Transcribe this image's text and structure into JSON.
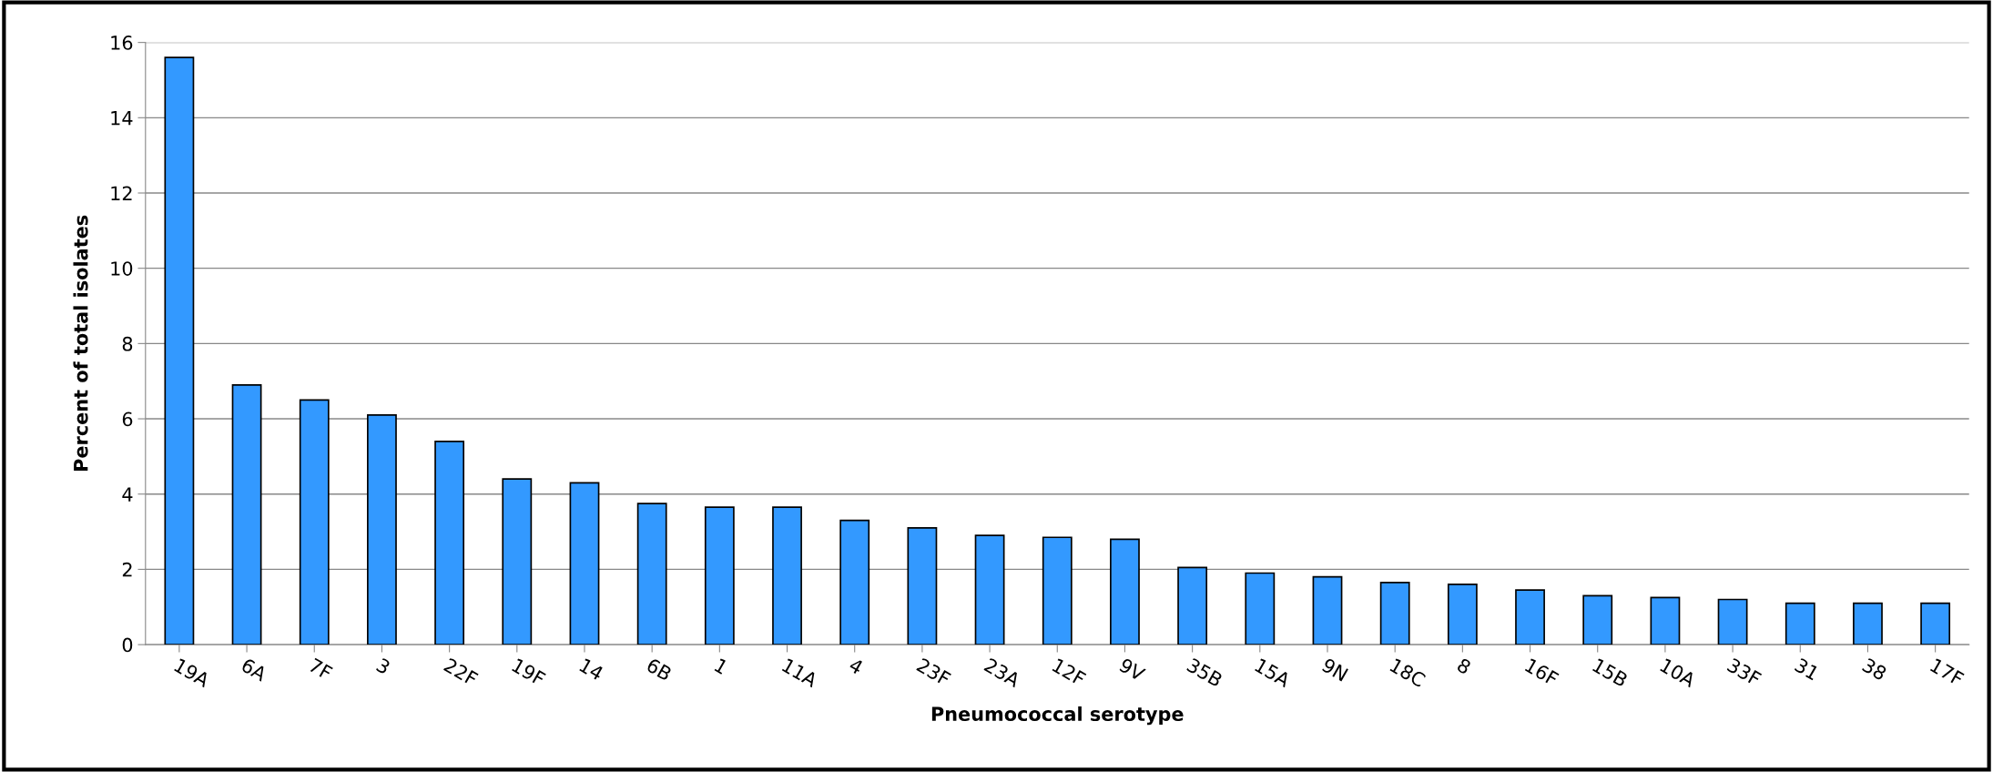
{
  "chart_data": {
    "type": "bar",
    "categories": [
      "19A",
      "6A",
      "7F",
      "3",
      "22F",
      "19F",
      "14",
      "6B",
      "1",
      "11A",
      "4",
      "23F",
      "23A",
      "12F",
      "9V",
      "35B",
      "15A",
      "9N",
      "18C",
      "8",
      "16F",
      "15B",
      "10A",
      "33F",
      "31",
      "38",
      "17F"
    ],
    "values": [
      15.6,
      6.9,
      6.5,
      6.1,
      5.4,
      4.4,
      4.3,
      3.75,
      3.65,
      3.65,
      3.3,
      3.1,
      2.9,
      2.85,
      2.8,
      2.05,
      1.9,
      1.8,
      1.65,
      1.6,
      1.45,
      1.3,
      1.25,
      1.2,
      1.1,
      1.1,
      1.1
    ],
    "color": "#3399ff",
    "xlabel": "Pneumococcal serotype",
    "ylabel": "Percent of total isolates",
    "ylim": [
      0,
      16
    ],
    "yticks": [
      0,
      2,
      4,
      6,
      8,
      10,
      12,
      14,
      16
    ],
    "grid": "y"
  }
}
